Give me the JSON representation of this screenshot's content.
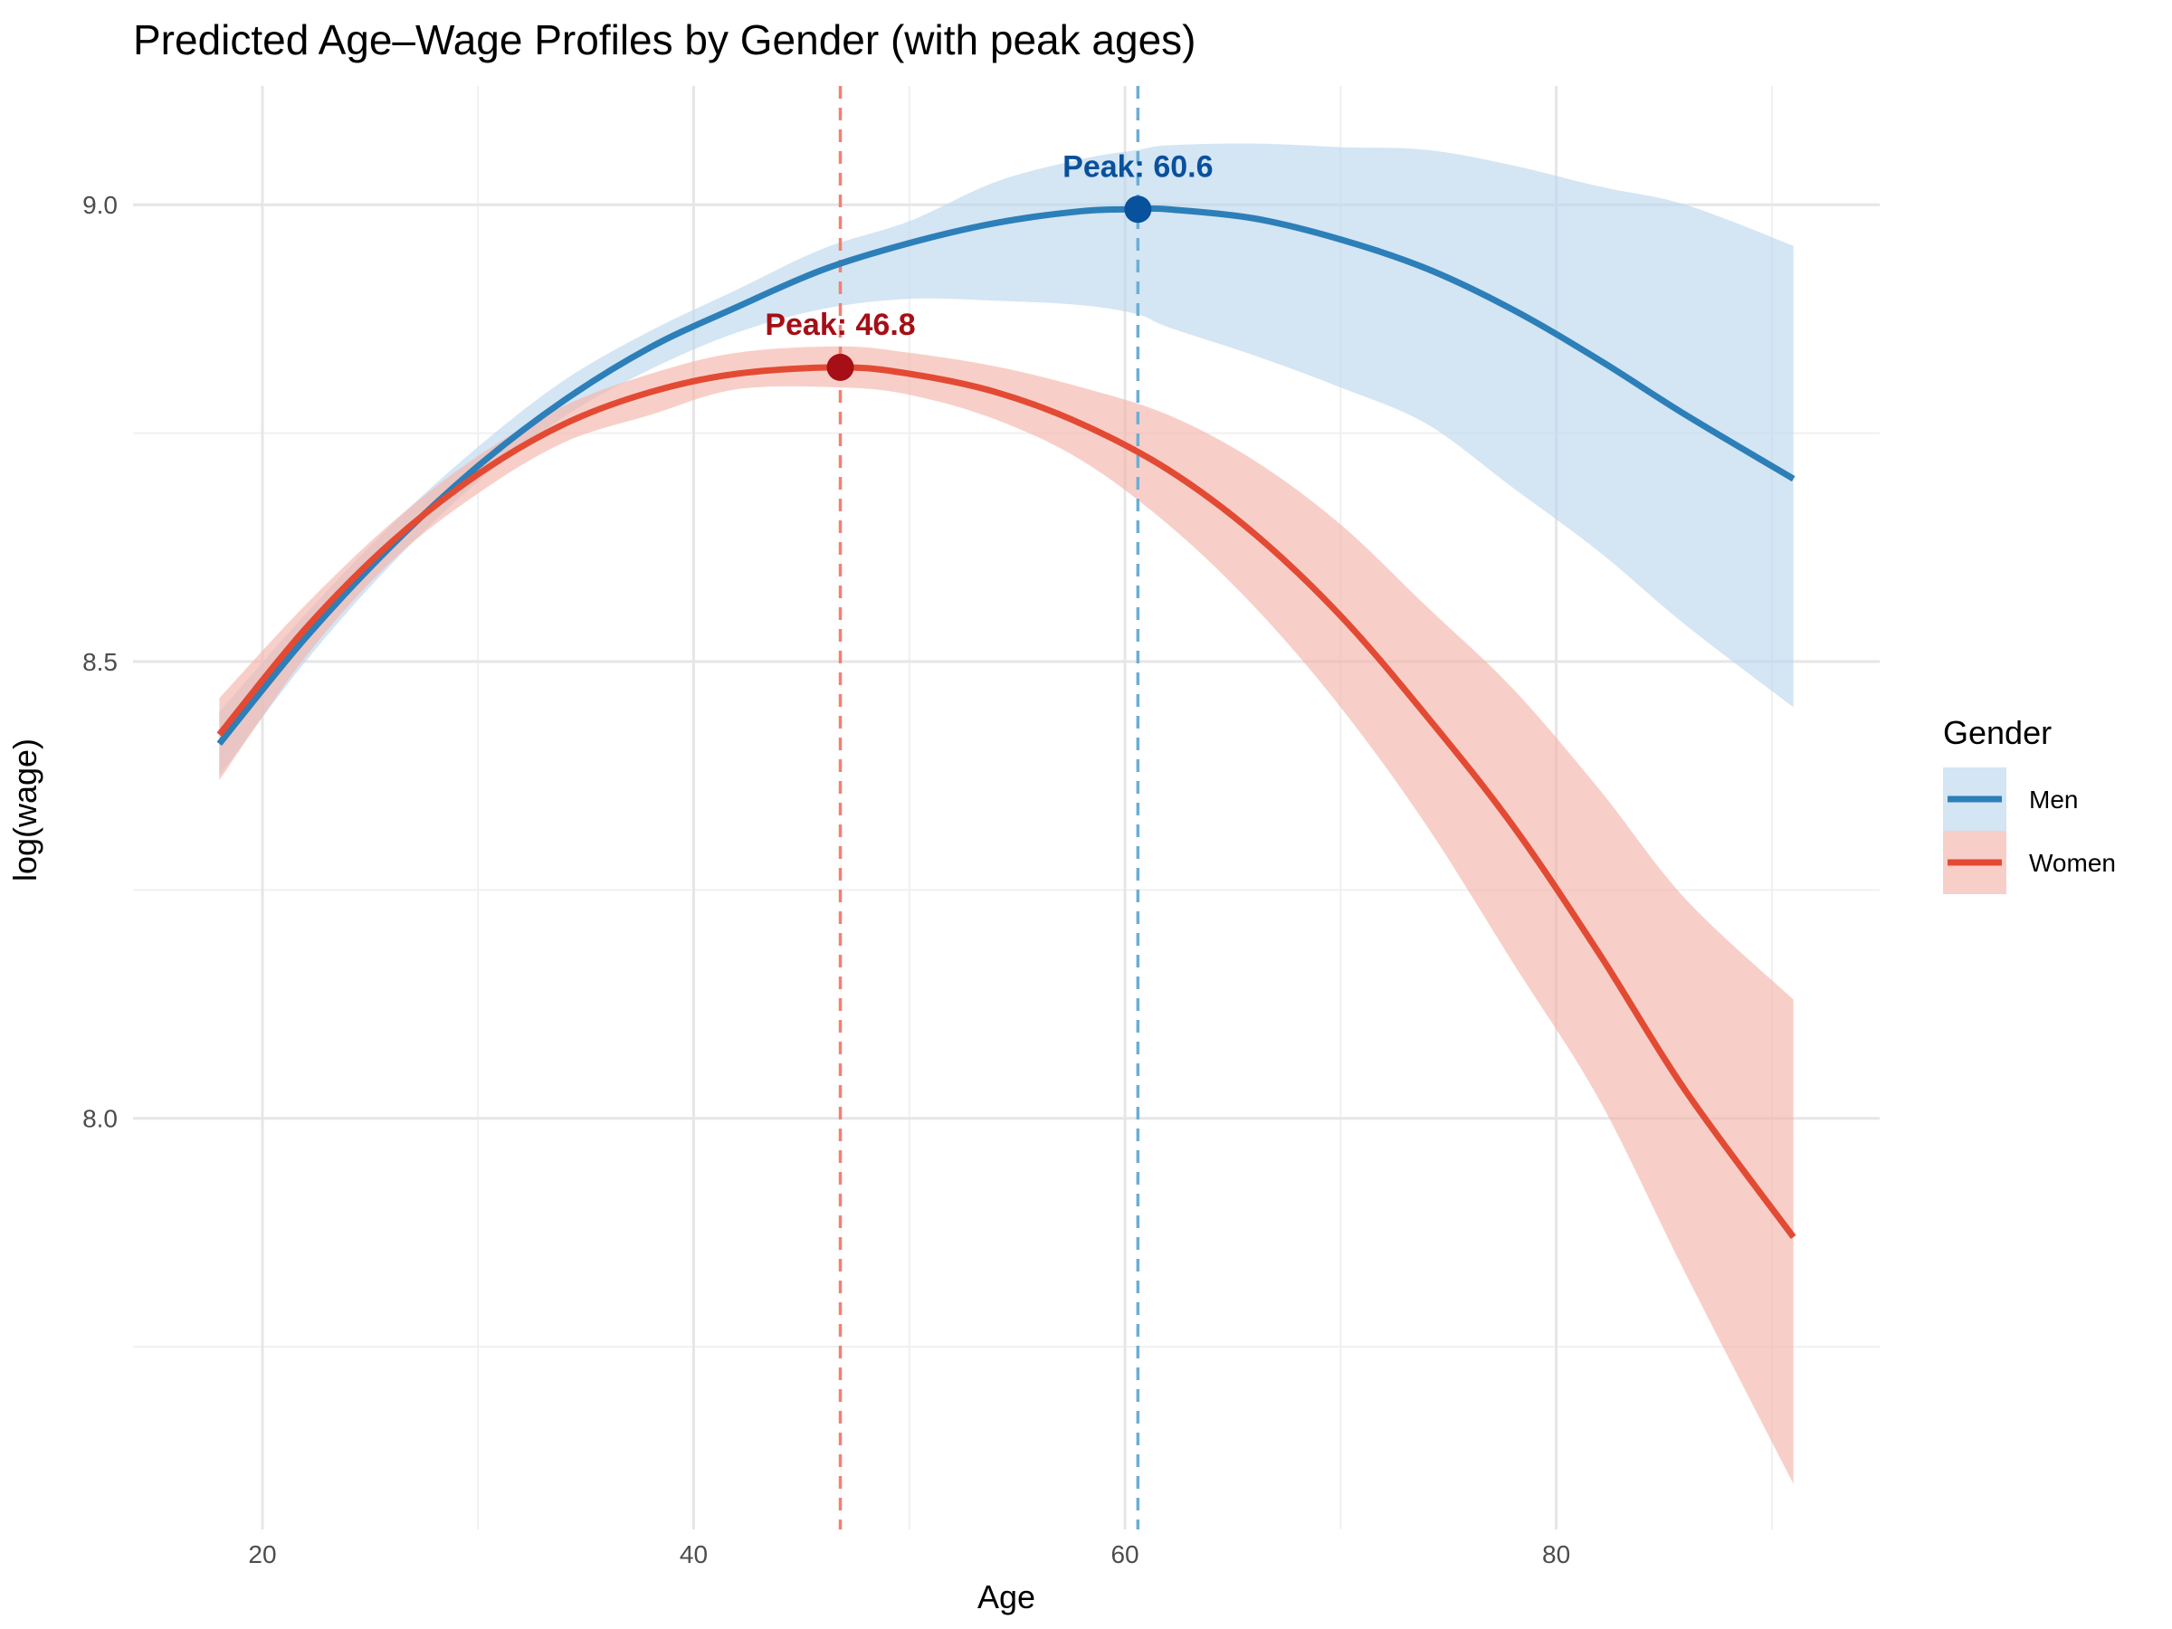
{
  "chart_data": {
    "type": "line",
    "title": "Predicted Age–Wage Profiles by Gender (with peak ages)",
    "xlabel": "Age",
    "ylabel": "log(wage)",
    "xlim": [
      14,
      95
    ],
    "ylim": [
      7.55,
      9.13
    ],
    "x_ticks": [
      20,
      40,
      60,
      80
    ],
    "x_tick_labels": [
      "20",
      "40",
      "60",
      "80"
    ],
    "x_minor_ticks": [
      30,
      50,
      70,
      90
    ],
    "y_ticks": [
      8.0,
      8.5,
      9.0
    ],
    "y_tick_labels": [
      "8.0",
      "8.5",
      "9.0"
    ],
    "y_minor_ticks": [
      7.75,
      8.25,
      8.75
    ],
    "grid": true,
    "legend": {
      "title": "Gender",
      "position": "right"
    },
    "series": [
      {
        "name": "Men",
        "color": "#2C7FB8",
        "band_color": "#BDD7EE",
        "peak_color": "#08519C",
        "line_color_vline": "#6BAED6",
        "peak_age": 60.6,
        "peak_value": 8.995,
        "peak_label": "Peak: 60.6",
        "x": [
          18,
          22,
          26,
          30,
          34,
          38,
          42,
          46,
          50,
          54,
          58,
          60.6,
          62,
          66,
          70,
          74,
          78,
          82,
          86,
          91
        ],
        "y": [
          8.41,
          8.526,
          8.627,
          8.714,
          8.786,
          8.844,
          8.888,
          8.929,
          8.958,
          8.98,
          8.993,
          8.995,
          8.995,
          8.985,
          8.962,
          8.93,
          8.885,
          8.83,
          8.77,
          8.7
        ],
        "lower": [
          8.375,
          8.5,
          8.607,
          8.697,
          8.768,
          8.82,
          8.86,
          8.886,
          8.897,
          8.895,
          8.89,
          8.88,
          8.866,
          8.835,
          8.8,
          8.76,
          8.69,
          8.62,
          8.54,
          8.45
        ],
        "upper": [
          8.445,
          8.552,
          8.65,
          8.735,
          8.808,
          8.862,
          8.907,
          8.952,
          8.982,
          9.025,
          9.05,
          9.06,
          9.065,
          9.067,
          9.063,
          9.06,
          9.043,
          9.02,
          9.0,
          8.955
        ]
      },
      {
        "name": "Women",
        "color": "#E34A33",
        "band_color": "#F4B6AA",
        "peak_color": "#A50F15",
        "line_color_vline": "#F28072",
        "peak_age": 46.8,
        "peak_value": 8.822,
        "peak_label": "Peak: 46.8",
        "x": [
          18,
          22,
          26,
          30,
          34,
          38,
          42,
          46.8,
          50,
          54,
          58,
          62,
          66,
          70,
          74,
          78,
          82,
          86,
          91
        ],
        "y": [
          8.42,
          8.536,
          8.631,
          8.705,
          8.76,
          8.795,
          8.815,
          8.822,
          8.815,
          8.795,
          8.76,
          8.71,
          8.64,
          8.55,
          8.44,
          8.32,
          8.18,
          8.03,
          7.87
        ],
        "lower": [
          8.37,
          8.505,
          8.61,
          8.684,
          8.74,
          8.77,
          8.798,
          8.8,
          8.792,
          8.765,
          8.72,
          8.65,
          8.56,
          8.45,
          8.32,
          8.17,
          8.02,
          7.83,
          7.6
        ],
        "upper": [
          8.46,
          8.562,
          8.652,
          8.725,
          8.78,
          8.815,
          8.838,
          8.845,
          8.838,
          8.823,
          8.8,
          8.77,
          8.72,
          8.65,
          8.56,
          8.47,
          8.36,
          8.24,
          8.13
        ]
      }
    ]
  }
}
